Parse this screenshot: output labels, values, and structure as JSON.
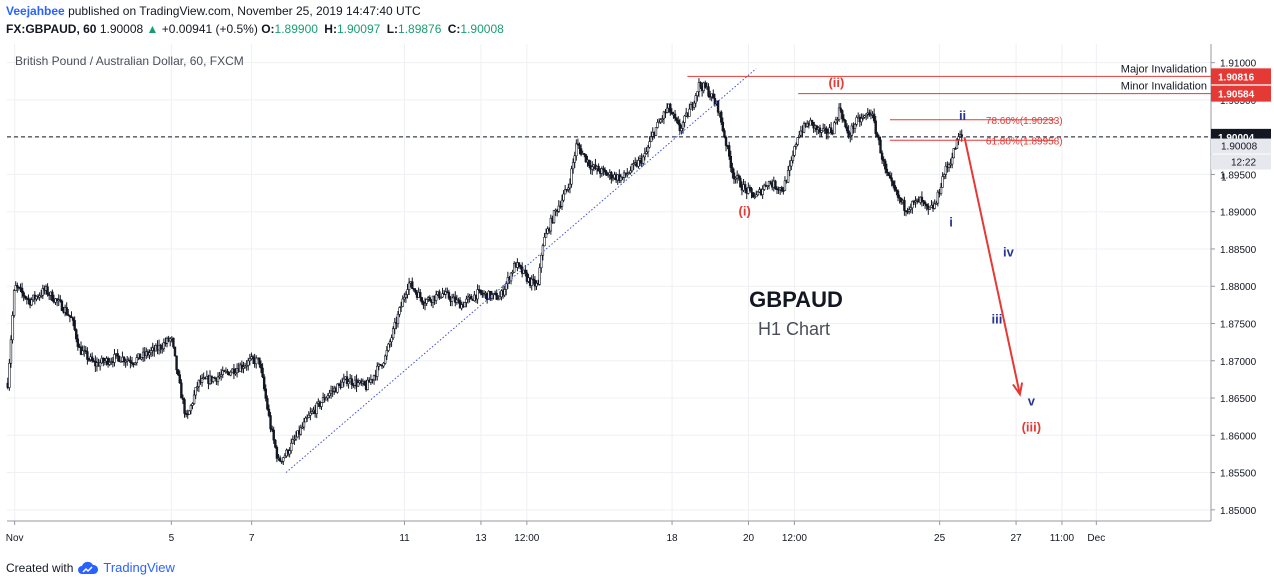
{
  "header": {
    "author": "Veejahbee",
    "published": "published on TradingView.com, November 25, 2019 14:47:40 UTC",
    "symbol": "FX:GBPAUD, 60",
    "last": "1.90008",
    "change": "+0.00941 (+0.5%)",
    "ohlc": [
      {
        "k": "O:",
        "v": "1.89900"
      },
      {
        "k": "H:",
        "v": "1.90097"
      },
      {
        "k": "L:",
        "v": "1.89876"
      },
      {
        "k": "C:",
        "v": "1.90008"
      }
    ]
  },
  "footer": {
    "created_with": "Created with",
    "brand": "TradingView",
    "logo_icon": "tradingview-cloud-icon"
  },
  "colors": {
    "red": "#e53935",
    "blue": "#283593",
    "accent": "#2962ff",
    "candle": "#131722",
    "grid": "#eef0f3",
    "trend": "#3f51d6"
  },
  "chart_data": {
    "type": "candlestick",
    "title": "British Pound / Australian Dollar, 60, FXCM",
    "watermark": {
      "line1": "GBPAUD",
      "line2": "H1 Chart"
    },
    "ylim": [
      1.8485,
      1.9125
    ],
    "y_ticks": [
      "1.91000",
      "1.90500",
      "1.90000",
      "1.89500",
      "1.89000",
      "1.88500",
      "1.88000",
      "1.87500",
      "1.87000",
      "1.86500",
      "1.86000",
      "1.85500",
      "1.85000"
    ],
    "x_ticks": [
      "Nov",
      "5",
      "7",
      "11",
      "13",
      "12:00",
      "18",
      "20",
      "12:00",
      "25",
      "27",
      "11:00",
      "Dec"
    ],
    "x_tick_days": [
      1.1,
      5.2,
      7.3,
      11.3,
      13.3,
      14.5,
      18.3,
      20.3,
      21.5,
      25.3,
      27.3,
      28.5,
      29.4
    ],
    "x_range_days": [
      0.9,
      32.4
    ],
    "price_path": [
      [
        0.92,
        1.867
      ],
      [
        1.1,
        1.88
      ],
      [
        1.5,
        1.878
      ],
      [
        1.9,
        1.8795
      ],
      [
        2.4,
        1.877
      ],
      [
        2.6,
        1.8755
      ],
      [
        2.8,
        1.8715
      ],
      [
        3.2,
        1.8695
      ],
      [
        3.8,
        1.8705
      ],
      [
        4.2,
        1.87
      ],
      [
        4.8,
        1.8715
      ],
      [
        5.2,
        1.873
      ],
      [
        5.4,
        1.867
      ],
      [
        5.6,
        1.862
      ],
      [
        5.9,
        1.867
      ],
      [
        6.5,
        1.868
      ],
      [
        7.3,
        1.87
      ],
      [
        7.5,
        1.87
      ],
      [
        7.6,
        1.867
      ],
      [
        7.8,
        1.861
      ],
      [
        8.0,
        1.8565
      ],
      [
        8.2,
        1.8575
      ],
      [
        8.8,
        1.8625
      ],
      [
        9.3,
        1.8655
      ],
      [
        9.8,
        1.8675
      ],
      [
        10.3,
        1.8665
      ],
      [
        10.8,
        1.8705
      ],
      [
        11.1,
        1.8755
      ],
      [
        11.4,
        1.8805
      ],
      [
        11.8,
        1.878
      ],
      [
        12.3,
        1.879
      ],
      [
        12.8,
        1.8775
      ],
      [
        13.2,
        1.879
      ],
      [
        13.8,
        1.8785
      ],
      [
        14.2,
        1.883
      ],
      [
        14.6,
        1.8805
      ],
      [
        14.8,
        1.88
      ],
      [
        14.9,
        1.8855
      ],
      [
        15.2,
        1.8895
      ],
      [
        15.6,
        1.8935
      ],
      [
        15.8,
        1.899
      ],
      [
        16.2,
        1.896
      ],
      [
        16.6,
        1.895
      ],
      [
        17.0,
        1.8945
      ],
      [
        17.3,
        1.896
      ],
      [
        17.6,
        1.8975
      ],
      [
        17.8,
        1.9005
      ],
      [
        18.2,
        1.904
      ],
      [
        18.5,
        1.901
      ],
      [
        18.8,
        1.904
      ],
      [
        19.0,
        1.907
      ],
      [
        19.2,
        1.9065
      ],
      [
        19.5,
        1.904
      ],
      [
        19.7,
        1.8995
      ],
      [
        19.9,
        1.895
      ],
      [
        20.2,
        1.893
      ],
      [
        20.5,
        1.892
      ],
      [
        20.8,
        1.894
      ],
      [
        21.2,
        1.893
      ],
      [
        21.4,
        1.896
      ],
      [
        21.6,
        1.9005
      ],
      [
        21.9,
        1.902
      ],
      [
        22.2,
        1.9005
      ],
      [
        22.5,
        1.901
      ],
      [
        22.7,
        1.904
      ],
      [
        22.9,
        1.9
      ],
      [
        23.1,
        1.902
      ],
      [
        23.3,
        1.9025
      ],
      [
        23.5,
        1.9035
      ],
      [
        23.7,
        1.8995
      ],
      [
        23.9,
        1.895
      ],
      [
        24.2,
        1.892
      ],
      [
        24.4,
        1.8905
      ],
      [
        24.6,
        1.891
      ],
      [
        24.8,
        1.8915
      ],
      [
        25.0,
        1.89
      ],
      [
        25.2,
        1.891
      ],
      [
        25.4,
        1.895
      ],
      [
        25.6,
        1.897
      ],
      [
        25.8,
        1.9
      ],
      [
        25.9,
        1.9001
      ]
    ],
    "trendline": {
      "from": [
        8.2,
        1.855
      ],
      "to": [
        20.5,
        1.9092
      ]
    },
    "current_price": {
      "value": 1.90004,
      "label": "1.90004"
    },
    "price_labels": [
      {
        "label": "1.90008",
        "value": 1.90008
      },
      {
        "label": "12:22",
        "value": 1.897
      },
      {
        "label": "1",
        "value": 1.895
      }
    ],
    "levels": [
      {
        "name": "Major Invalidation",
        "value": 1.90816,
        "label": "1.90816",
        "from_day": 18.7
      },
      {
        "name": "Minor Invalidation",
        "value": 1.90584,
        "label": "1.90584",
        "from_day": 21.6
      }
    ],
    "fib": [
      {
        "label": "78.60%(1.90233)",
        "value": 1.90233,
        "from_day": 24.0,
        "to_day": 25.7
      },
      {
        "label": "61.80%(1.89958)",
        "value": 1.89958,
        "from_day": 24.0,
        "to_day": 25.7
      }
    ],
    "projection": {
      "from": [
        25.95,
        1.9
      ],
      "to": [
        27.4,
        1.8655
      ]
    },
    "wave_labels": [
      {
        "text": "(i)",
        "day": 20.2,
        "price": 1.8895,
        "color": "red"
      },
      {
        "text": "(ii)",
        "day": 22.6,
        "price": 1.9067,
        "color": "red"
      },
      {
        "text": "i",
        "day": 25.6,
        "price": 1.888,
        "color": "blue"
      },
      {
        "text": "ii",
        "day": 25.9,
        "price": 1.9023,
        "color": "blue"
      },
      {
        "text": "iii",
        "day": 26.8,
        "price": 1.875,
        "color": "blue"
      },
      {
        "text": "iv",
        "day": 27.1,
        "price": 1.884,
        "color": "blue"
      },
      {
        "text": "v",
        "day": 27.7,
        "price": 1.864,
        "color": "blue"
      },
      {
        "text": "(iii)",
        "day": 27.7,
        "price": 1.8605,
        "color": "red"
      }
    ]
  }
}
